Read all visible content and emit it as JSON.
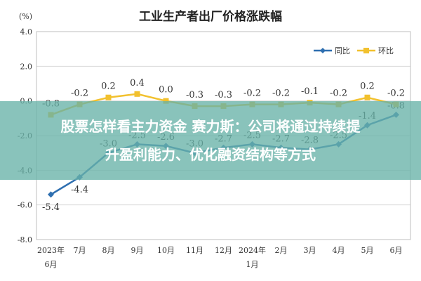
{
  "chart_data": {
    "type": "line",
    "title": "工业生产者出厂价格涨跌幅",
    "ylabel": "(%)",
    "xlabel": "",
    "ylim": [
      -8.0,
      4.0
    ],
    "yticks": [
      "4.0",
      "2.0",
      "0.0",
      "-2.0",
      "-4.0",
      "-6.0",
      "-8.0"
    ],
    "categories": [
      "2023年6月",
      "7月",
      "8月",
      "9月",
      "10月",
      "11月",
      "12月",
      "2024年1月",
      "2月",
      "3月",
      "4月",
      "5月",
      "6月"
    ],
    "grid": true,
    "legend_position": "top-right",
    "series": [
      {
        "name": "同比",
        "color": "#2e6fb0",
        "values": [
          -5.4,
          -4.4,
          -3.0,
          -2.5,
          -2.6,
          -3.0,
          -2.7,
          -2.5,
          -2.7,
          -2.8,
          -2.5,
          -1.4,
          -0.8
        ]
      },
      {
        "name": "环比",
        "color": "#f2c12e",
        "values": [
          -0.8,
          -0.2,
          0.2,
          0.4,
          0.0,
          -0.3,
          -0.3,
          -0.2,
          -0.2,
          -0.1,
          -0.2,
          0.2,
          -0.2
        ]
      }
    ]
  },
  "overlay": {
    "line1": "股票怎样看主力资金 赛力斯：公司将通过持续提",
    "line2": "升盈利能力、优化融资结构等方式"
  }
}
